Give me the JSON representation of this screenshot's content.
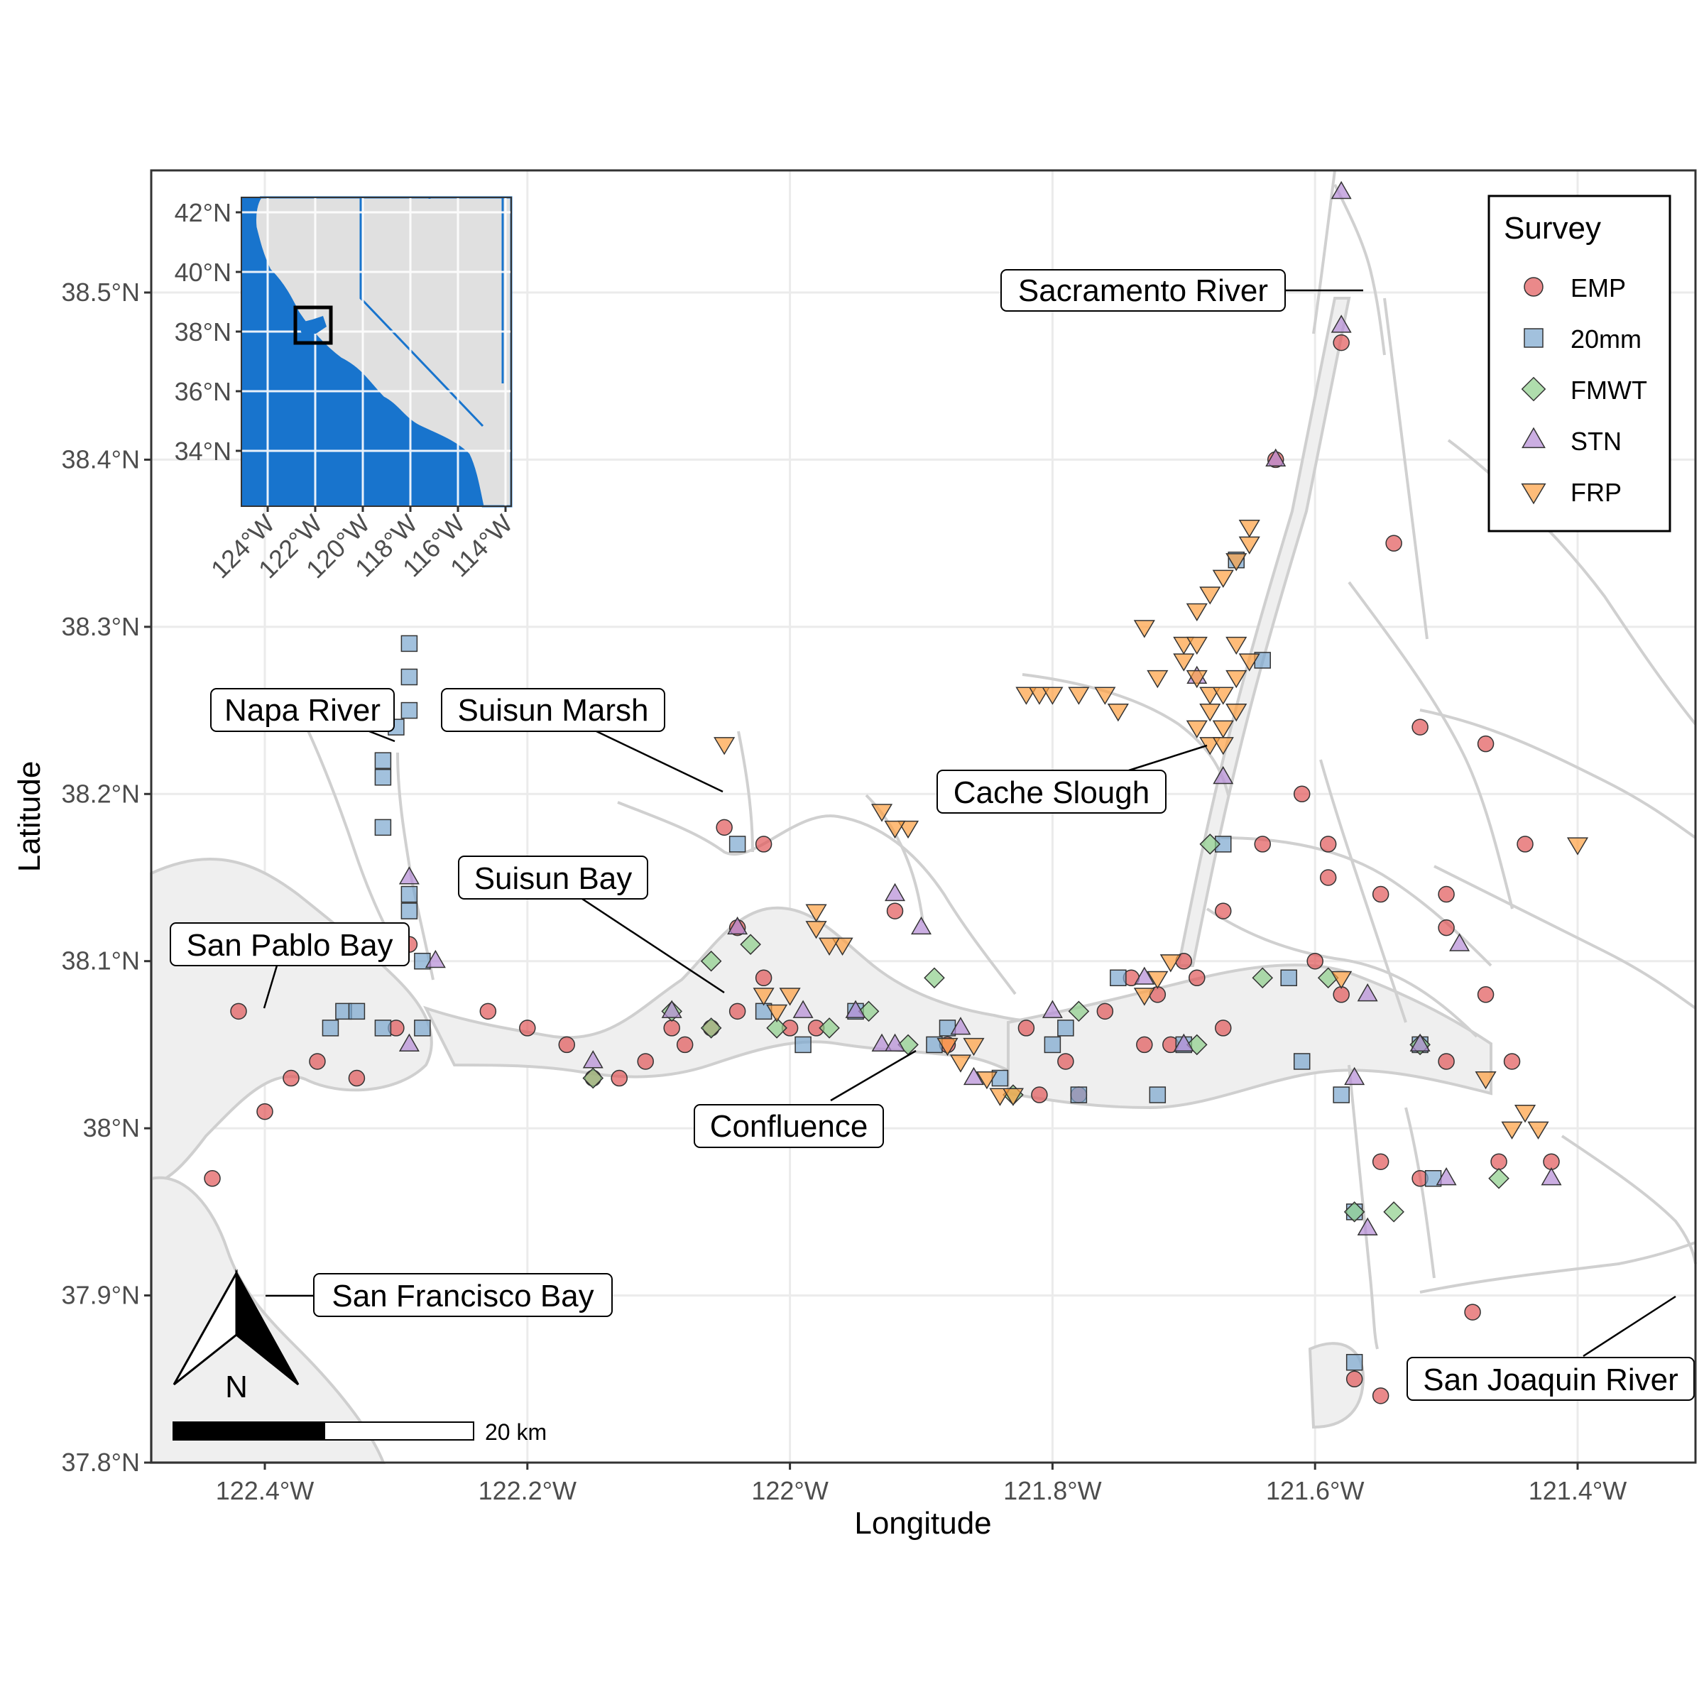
{
  "axes": {
    "xlabel": "Longitude",
    "ylabel": "Latitude",
    "x_ticks": [
      {
        "value": -122.4,
        "label": "122.4°W"
      },
      {
        "value": -122.2,
        "label": "122.2°W"
      },
      {
        "value": -122.0,
        "label": "122°W"
      },
      {
        "value": -121.8,
        "label": "121.8°W"
      },
      {
        "value": -121.6,
        "label": "121.6°W"
      },
      {
        "value": -121.4,
        "label": "121.4°W"
      }
    ],
    "y_ticks": [
      {
        "value": 37.8,
        "label": "37.8°N"
      },
      {
        "value": 37.9,
        "label": "37.9°N"
      },
      {
        "value": 38.0,
        "label": "38°N"
      },
      {
        "value": 38.1,
        "label": "38.1°N"
      },
      {
        "value": 38.2,
        "label": "38.2°N"
      },
      {
        "value": 38.3,
        "label": "38.3°N"
      },
      {
        "value": 38.4,
        "label": "38.4°N"
      },
      {
        "value": 38.5,
        "label": "38.5°N"
      }
    ],
    "xlim": [
      -122.48,
      -121.3
    ],
    "ylim": [
      37.8,
      38.58
    ]
  },
  "legend": {
    "title": "Survey",
    "placement": "top-right",
    "items": [
      {
        "label": "EMP",
        "shape": "circle",
        "color": "#E15759"
      },
      {
        "label": "20mm",
        "shape": "square",
        "color": "#7BA6CF"
      },
      {
        "label": "FMWT",
        "shape": "diamond",
        "color": "#8DCF8A"
      },
      {
        "label": "STN",
        "shape": "triangle-up",
        "color": "#B58BD6"
      },
      {
        "label": "FRP",
        "shape": "triangle-down",
        "color": "#FF9F40"
      }
    ]
  },
  "place_labels": [
    {
      "text": "Sacramento River",
      "lon": -121.62,
      "lat": 38.5
    },
    {
      "text": "Napa River",
      "lon": -122.48,
      "lat": 38.25
    },
    {
      "text": "Suisun Marsh",
      "lon": -122.2,
      "lat": 38.25
    },
    {
      "text": "Cache Slough",
      "lon": -121.81,
      "lat": 38.2
    },
    {
      "text": "Suisun Bay",
      "lon": -122.2,
      "lat": 38.15
    },
    {
      "text": "San Pablo Bay",
      "lon": -122.42,
      "lat": 38.11
    },
    {
      "text": "Confluence",
      "lon": -122.03,
      "lat": 38.0
    },
    {
      "text": "San Francisco Bay",
      "lon": -122.25,
      "lat": 37.9
    },
    {
      "text": "San Joaquin River",
      "lon": -121.38,
      "lat": 37.85
    }
  ],
  "inset": {
    "x_ticks": [
      "124°W",
      "122°W",
      "120°W",
      "118°W",
      "116°W",
      "114°W"
    ],
    "y_ticks": [
      "42°N",
      "40°N",
      "38°N",
      "36°N",
      "34°N"
    ],
    "land_color": "#E0E0E0",
    "water_color": "#1874CD"
  },
  "north_arrow_label": "N",
  "scale_bar_label": "20 km",
  "chart_data": {
    "type": "scatter",
    "xlabel": "Longitude",
    "ylabel": "Latitude",
    "xlim": [
      -122.48,
      -121.3
    ],
    "ylim": [
      37.8,
      38.58
    ],
    "grid": true,
    "series": [
      {
        "name": "EMP",
        "points": [
          [
            -122.42,
            38.07
          ],
          [
            -122.4,
            38.01
          ],
          [
            -122.38,
            38.03
          ],
          [
            -122.36,
            38.04
          ],
          [
            -122.33,
            38.03
          ],
          [
            -122.3,
            38.06
          ],
          [
            -122.29,
            38.11
          ],
          [
            -122.44,
            37.97
          ],
          [
            -122.23,
            38.07
          ],
          [
            -122.2,
            38.06
          ],
          [
            -122.17,
            38.05
          ],
          [
            -122.15,
            38.03
          ],
          [
            -122.13,
            38.03
          ],
          [
            -122.11,
            38.04
          ],
          [
            -122.09,
            38.06
          ],
          [
            -122.08,
            38.05
          ],
          [
            -122.06,
            38.06
          ],
          [
            -122.04,
            38.07
          ],
          [
            -122.02,
            38.09
          ],
          [
            -122.0,
            38.06
          ],
          [
            -121.98,
            38.06
          ],
          [
            -122.05,
            38.18
          ],
          [
            -122.02,
            38.17
          ],
          [
            -122.04,
            38.12
          ],
          [
            -121.92,
            38.13
          ],
          [
            -121.88,
            38.05
          ],
          [
            -121.82,
            38.06
          ],
          [
            -121.79,
            38.04
          ],
          [
            -121.81,
            38.02
          ],
          [
            -121.78,
            38.02
          ],
          [
            -121.74,
            38.09
          ],
          [
            -121.71,
            38.05
          ],
          [
            -121.67,
            38.06
          ],
          [
            -121.64,
            38.17
          ],
          [
            -121.61,
            38.2
          ],
          [
            -121.59,
            38.17
          ],
          [
            -121.59,
            38.15
          ],
          [
            -121.58,
            38.08
          ],
          [
            -121.6,
            38.1
          ],
          [
            -121.55,
            38.14
          ],
          [
            -121.5,
            38.14
          ],
          [
            -121.5,
            38.12
          ],
          [
            -121.47,
            38.08
          ],
          [
            -121.45,
            38.04
          ],
          [
            -121.42,
            37.98
          ],
          [
            -121.46,
            37.98
          ],
          [
            -121.52,
            37.97
          ],
          [
            -121.55,
            37.98
          ],
          [
            -121.57,
            37.85
          ],
          [
            -121.55,
            37.84
          ],
          [
            -121.48,
            37.89
          ],
          [
            -121.5,
            38.04
          ],
          [
            -121.44,
            38.17
          ],
          [
            -121.47,
            38.23
          ],
          [
            -121.52,
            38.24
          ],
          [
            -121.54,
            38.35
          ],
          [
            -121.63,
            38.4
          ],
          [
            -121.58,
            38.47
          ],
          [
            -121.69,
            38.09
          ],
          [
            -121.67,
            38.13
          ],
          [
            -121.7,
            38.1
          ],
          [
            -121.72,
            38.08
          ],
          [
            -121.73,
            38.05
          ],
          [
            -121.76,
            38.07
          ]
        ]
      },
      {
        "name": "20mm",
        "points": [
          [
            -122.29,
            38.29
          ],
          [
            -122.29,
            38.27
          ],
          [
            -122.29,
            38.25
          ],
          [
            -122.3,
            38.24
          ],
          [
            -122.31,
            38.22
          ],
          [
            -122.31,
            38.21
          ],
          [
            -122.31,
            38.18
          ],
          [
            -122.29,
            38.14
          ],
          [
            -122.29,
            38.13
          ],
          [
            -122.28,
            38.1
          ],
          [
            -122.28,
            38.06
          ],
          [
            -122.34,
            38.07
          ],
          [
            -122.33,
            38.07
          ],
          [
            -122.31,
            38.06
          ],
          [
            -122.35,
            38.06
          ],
          [
            -122.04,
            38.17
          ],
          [
            -122.02,
            38.07
          ],
          [
            -121.99,
            38.05
          ],
          [
            -121.95,
            38.07
          ],
          [
            -121.89,
            38.05
          ],
          [
            -121.88,
            38.06
          ],
          [
            -121.84,
            38.03
          ],
          [
            -121.8,
            38.05
          ],
          [
            -121.79,
            38.06
          ],
          [
            -121.78,
            38.02
          ],
          [
            -121.75,
            38.09
          ],
          [
            -121.72,
            38.02
          ],
          [
            -121.7,
            38.05
          ],
          [
            -121.67,
            38.17
          ],
          [
            -121.66,
            38.34
          ],
          [
            -121.64,
            38.28
          ],
          [
            -121.62,
            38.09
          ],
          [
            -121.61,
            38.04
          ],
          [
            -121.58,
            38.02
          ],
          [
            -121.57,
            37.95
          ],
          [
            -121.51,
            37.97
          ],
          [
            -121.52,
            38.05
          ],
          [
            -121.57,
            37.86
          ]
        ]
      },
      {
        "name": "FMWT",
        "points": [
          [
            -122.15,
            38.03
          ],
          [
            -122.09,
            38.07
          ],
          [
            -122.06,
            38.06
          ],
          [
            -122.03,
            38.11
          ],
          [
            -122.01,
            38.06
          ],
          [
            -121.97,
            38.06
          ],
          [
            -121.94,
            38.07
          ],
          [
            -121.89,
            38.09
          ],
          [
            -121.91,
            38.05
          ],
          [
            -121.83,
            38.02
          ],
          [
            -121.78,
            38.07
          ],
          [
            -121.69,
            38.05
          ],
          [
            -121.68,
            38.17
          ],
          [
            -121.64,
            38.09
          ],
          [
            -121.59,
            38.09
          ],
          [
            -121.57,
            37.95
          ],
          [
            -121.54,
            37.95
          ],
          [
            -121.52,
            38.05
          ],
          [
            -121.46,
            37.97
          ],
          [
            -122.06,
            38.1
          ]
        ]
      },
      {
        "name": "STN",
        "points": [
          [
            -122.29,
            38.15
          ],
          [
            -122.29,
            38.05
          ],
          [
            -122.27,
            38.1
          ],
          [
            -122.15,
            38.04
          ],
          [
            -122.09,
            38.07
          ],
          [
            -122.04,
            38.12
          ],
          [
            -121.99,
            38.07
          ],
          [
            -121.93,
            38.05
          ],
          [
            -121.92,
            38.14
          ],
          [
            -121.9,
            38.12
          ],
          [
            -121.87,
            38.06
          ],
          [
            -121.86,
            38.03
          ],
          [
            -121.8,
            38.07
          ],
          [
            -121.73,
            38.09
          ],
          [
            -121.7,
            38.05
          ],
          [
            -121.69,
            38.27
          ],
          [
            -121.67,
            38.21
          ],
          [
            -121.63,
            38.4
          ],
          [
            -121.58,
            38.56
          ],
          [
            -121.58,
            38.48
          ],
          [
            -121.56,
            38.08
          ],
          [
            -121.57,
            38.03
          ],
          [
            -121.56,
            37.94
          ],
          [
            -121.5,
            37.97
          ],
          [
            -121.52,
            38.05
          ],
          [
            -121.42,
            37.97
          ],
          [
            -121.49,
            38.11
          ],
          [
            -121.95,
            38.07
          ],
          [
            -121.92,
            38.05
          ]
        ]
      },
      {
        "name": "FRP",
        "points": [
          [
            -122.05,
            38.23
          ],
          [
            -121.93,
            38.19
          ],
          [
            -121.91,
            38.18
          ],
          [
            -121.92,
            38.18
          ],
          [
            -121.96,
            38.11
          ],
          [
            -121.98,
            38.13
          ],
          [
            -121.98,
            38.12
          ],
          [
            -121.97,
            38.11
          ],
          [
            -122.02,
            38.08
          ],
          [
            -122.0,
            38.08
          ],
          [
            -122.01,
            38.07
          ],
          [
            -121.88,
            38.05
          ],
          [
            -121.87,
            38.04
          ],
          [
            -121.86,
            38.05
          ],
          [
            -121.85,
            38.03
          ],
          [
            -121.84,
            38.02
          ],
          [
            -121.83,
            38.02
          ],
          [
            -121.71,
            38.1
          ],
          [
            -121.72,
            38.09
          ],
          [
            -121.73,
            38.08
          ],
          [
            -121.58,
            38.09
          ],
          [
            -121.47,
            38.03
          ],
          [
            -121.44,
            38.01
          ],
          [
            -121.43,
            38.0
          ],
          [
            -121.45,
            38.0
          ],
          [
            -121.4,
            38.17
          ],
          [
            -121.82,
            38.26
          ],
          [
            -121.81,
            38.26
          ],
          [
            -121.8,
            38.26
          ],
          [
            -121.78,
            38.26
          ],
          [
            -121.76,
            38.26
          ],
          [
            -121.75,
            38.25
          ],
          [
            -121.73,
            38.3
          ],
          [
            -121.72,
            38.27
          ],
          [
            -121.7,
            38.29
          ],
          [
            -121.7,
            38.28
          ],
          [
            -121.69,
            38.29
          ],
          [
            -121.69,
            38.27
          ],
          [
            -121.68,
            38.26
          ],
          [
            -121.68,
            38.25
          ],
          [
            -121.67,
            38.24
          ],
          [
            -121.67,
            38.26
          ],
          [
            -121.66,
            38.25
          ],
          [
            -121.66,
            38.27
          ],
          [
            -121.65,
            38.28
          ],
          [
            -121.66,
            38.29
          ],
          [
            -121.68,
            38.32
          ],
          [
            -121.67,
            38.33
          ],
          [
            -121.66,
            38.34
          ],
          [
            -121.65,
            38.36
          ],
          [
            -121.65,
            38.35
          ],
          [
            -121.69,
            38.31
          ],
          [
            -121.69,
            38.24
          ],
          [
            -121.68,
            38.23
          ],
          [
            -121.67,
            38.23
          ]
        ]
      }
    ]
  }
}
